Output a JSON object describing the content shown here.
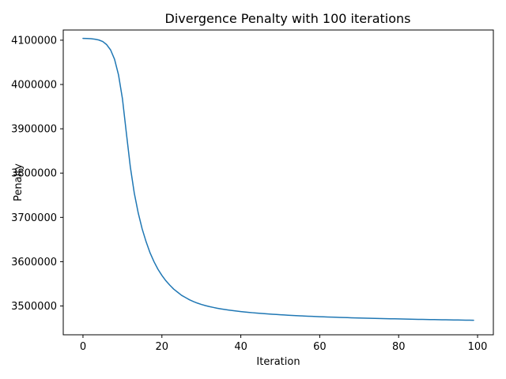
{
  "chart_data": {
    "type": "line",
    "title": "Divergence Penalty with 100 iterations",
    "xlabel": "Iteration",
    "ylabel": "Penalty",
    "xlim": [
      -5,
      104
    ],
    "ylim": [
      3435000,
      4123000
    ],
    "xticks": [
      0,
      20,
      40,
      60,
      80,
      100
    ],
    "yticks": [
      3500000,
      3600000,
      3700000,
      3800000,
      3900000,
      4000000,
      4100000
    ],
    "xtick_labels": [
      "0",
      "20",
      "40",
      "60",
      "80",
      "100"
    ],
    "ytick_labels": [
      "3500000",
      "3600000",
      "3700000",
      "3800000",
      "3900000",
      "4000000",
      "4100000"
    ],
    "grid": false,
    "line_color": "#1f77b4",
    "series": [
      {
        "x": [
          0,
          1,
          2,
          3,
          4,
          5,
          6,
          7,
          8,
          9,
          10,
          11,
          12,
          13,
          14,
          15,
          16,
          17,
          18,
          19,
          20,
          21,
          22,
          23,
          24,
          25,
          26,
          27,
          28,
          29,
          30,
          31,
          32,
          33,
          34,
          35,
          36,
          37,
          38,
          39,
          40,
          41,
          42,
          43,
          44,
          45,
          46,
          47,
          48,
          49,
          50,
          51,
          52,
          53,
          54,
          55,
          56,
          57,
          58,
          59,
          60,
          61,
          62,
          63,
          64,
          65,
          66,
          67,
          68,
          69,
          70,
          71,
          72,
          73,
          74,
          75,
          76,
          77,
          78,
          79,
          80,
          81,
          82,
          83,
          84,
          85,
          86,
          87,
          88,
          89,
          90,
          91,
          92,
          93,
          94,
          95,
          96,
          97,
          98,
          99
        ],
        "y": [
          4104000,
          4103800,
          4103300,
          4102300,
          4100500,
          4097000,
          4090000,
          4078000,
          4057000,
          4022000,
          3968000,
          3890000,
          3814000,
          3755000,
          3710000,
          3674000,
          3645000,
          3620000,
          3600000,
          3583000,
          3569000,
          3557000,
          3547000,
          3538000,
          3531000,
          3524000,
          3519000,
          3514000,
          3510000,
          3506500,
          3503500,
          3501000,
          3498800,
          3496800,
          3495000,
          3493400,
          3492000,
          3490700,
          3489500,
          3488400,
          3487400,
          3486500,
          3485600,
          3484800,
          3484000,
          3483300,
          3482600,
          3482000,
          3481400,
          3480800,
          3480200,
          3479700,
          3479200,
          3478700,
          3478200,
          3477800,
          3477400,
          3477000,
          3476600,
          3476200,
          3475800,
          3475500,
          3475200,
          3474900,
          3474600,
          3474300,
          3474000,
          3473700,
          3473400,
          3473100,
          3472900,
          3472600,
          3472400,
          3472200,
          3472000,
          3471800,
          3471600,
          3471400,
          3471200,
          3471000,
          3470800,
          3470600,
          3470400,
          3470200,
          3470000,
          3469850,
          3469700,
          3469550,
          3469400,
          3469250,
          3469100,
          3468950,
          3468800,
          3468650,
          3468500,
          3468350,
          3468200,
          3468050,
          3467900,
          3467750
        ]
      }
    ]
  }
}
